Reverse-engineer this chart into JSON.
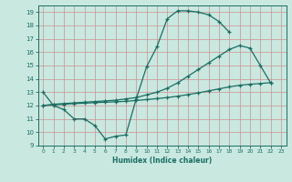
{
  "xlabel": "Humidex (Indice chaleur)",
  "xlim": [
    -0.5,
    23.5
  ],
  "ylim": [
    9,
    19.5
  ],
  "yticks": [
    9,
    10,
    11,
    12,
    13,
    14,
    15,
    16,
    17,
    18,
    19
  ],
  "xticks": [
    0,
    1,
    2,
    3,
    4,
    5,
    6,
    7,
    8,
    9,
    10,
    11,
    12,
    13,
    14,
    15,
    16,
    17,
    18,
    19,
    20,
    21,
    22,
    23
  ],
  "bg_color": "#c8e8e0",
  "grid_color": "#d09090",
  "line_color": "#1a6e62",
  "line1_x": [
    0,
    1,
    2,
    3,
    4,
    5,
    6,
    7,
    8,
    9,
    10,
    11,
    12,
    13,
    14,
    15,
    16,
    17,
    18
  ],
  "line1_y": [
    13.0,
    12.0,
    11.7,
    11.0,
    11.0,
    10.5,
    9.5,
    9.7,
    9.8,
    12.5,
    14.9,
    16.4,
    18.5,
    19.1,
    19.1,
    19.0,
    18.8,
    18.3,
    17.5
  ],
  "line2_x": [
    0,
    1,
    2,
    3,
    4,
    5,
    6,
    7,
    8,
    9,
    10,
    11,
    12,
    13,
    14,
    15,
    16,
    17,
    18,
    19,
    20,
    21,
    22
  ],
  "line2_y": [
    12.0,
    12.1,
    12.15,
    12.2,
    12.25,
    12.3,
    12.35,
    12.4,
    12.5,
    12.6,
    12.8,
    13.0,
    13.3,
    13.7,
    14.2,
    14.7,
    15.2,
    15.7,
    16.2,
    16.5,
    16.3,
    15.0,
    13.7
  ],
  "line3_x": [
    0,
    1,
    2,
    3,
    4,
    5,
    6,
    7,
    8,
    9,
    10,
    11,
    12,
    13,
    14,
    15,
    16,
    17,
    18,
    19,
    20,
    21,
    22
  ],
  "line3_y": [
    12.0,
    12.05,
    12.1,
    12.15,
    12.18,
    12.22,
    12.25,
    12.28,
    12.32,
    12.38,
    12.45,
    12.52,
    12.6,
    12.7,
    12.82,
    12.95,
    13.1,
    13.25,
    13.4,
    13.52,
    13.6,
    13.65,
    13.72
  ]
}
